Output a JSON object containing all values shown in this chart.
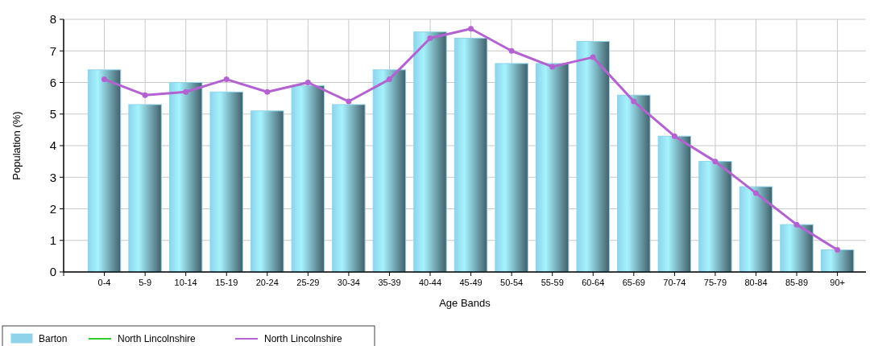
{
  "chart_data": {
    "type": "bar",
    "xlabel": "Age Bands",
    "ylabel": "Population (%)",
    "categories": [
      "0-4",
      "5-9",
      "10-14",
      "15-19",
      "20-24",
      "25-29",
      "30-34",
      "35-39",
      "40-44",
      "45-49",
      "50-54",
      "55-59",
      "60-64",
      "65-69",
      "70-74",
      "75-79",
      "80-84",
      "85-89",
      "90+"
    ],
    "series": [
      {
        "name": "Barton",
        "color": "#8fd3ea",
        "values": [
          6.4,
          5.3,
          6.0,
          5.7,
          5.1,
          5.9,
          5.3,
          6.4,
          7.6,
          7.4,
          6.6,
          6.6,
          7.3,
          5.6,
          4.3,
          3.5,
          2.7,
          1.5,
          0.7
        ]
      },
      {
        "name": "North Lincolnshire",
        "type": "line",
        "color": "#33cc33",
        "values": [
          null,
          null,
          null,
          null,
          null,
          null,
          null,
          null,
          null,
          null,
          null,
          null,
          null,
          null,
          null,
          null,
          null,
          null,
          null
        ]
      },
      {
        "name": "North Lincolnshire",
        "type": "line",
        "color": "#b462d2",
        "marker": "circle",
        "values": [
          6.1,
          5.6,
          5.7,
          6.1,
          5.7,
          6.0,
          5.4,
          6.1,
          7.4,
          7.7,
          7.0,
          6.5,
          6.8,
          5.4,
          4.3,
          3.5,
          2.5,
          1.5,
          0.7
        ]
      }
    ],
    "ylim": [
      0,
      8
    ],
    "yticks": [
      0,
      1,
      2,
      3,
      4,
      5,
      6,
      7,
      8
    ],
    "grid": true,
    "legend": "bottom left"
  }
}
